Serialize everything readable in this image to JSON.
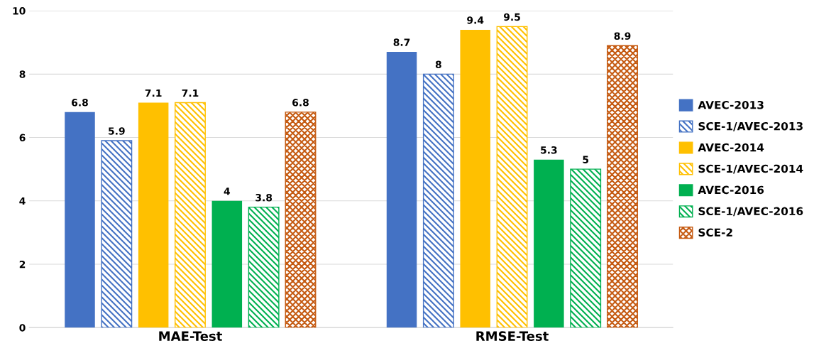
{
  "chart_data": {
    "type": "bar",
    "categories": [
      "MAE-Test",
      "RMSE-Test"
    ],
    "series": [
      {
        "name": "AVEC-2013",
        "color": "#4472c4",
        "values": [
          6.8,
          8.7
        ]
      },
      {
        "name": "SCE-1/AVEC-2013",
        "color": "#4472c4",
        "values": [
          5.9,
          8
        ]
      },
      {
        "name": "AVEC-2014",
        "color": "#ffc000",
        "values": [
          7.1,
          9.4
        ]
      },
      {
        "name": "SCE-1/AVEC-2014",
        "color": "#ffc000",
        "values": [
          7.1,
          9.5
        ]
      },
      {
        "name": "AVEC-2016",
        "color": "#00b050",
        "values": [
          4,
          5.3
        ]
      },
      {
        "name": "SCE-1/AVEC-2016",
        "color": "#00b050",
        "values": [
          3.8,
          5
        ]
      },
      {
        "name": "SCE-2",
        "color": "#c55a11",
        "values": [
          6.8,
          8.9
        ]
      }
    ],
    "ylim": [
      0,
      10
    ],
    "yticks": [
      0,
      2,
      4,
      6,
      8,
      10
    ],
    "grid": "y",
    "legend": "right",
    "data_labels": true
  }
}
